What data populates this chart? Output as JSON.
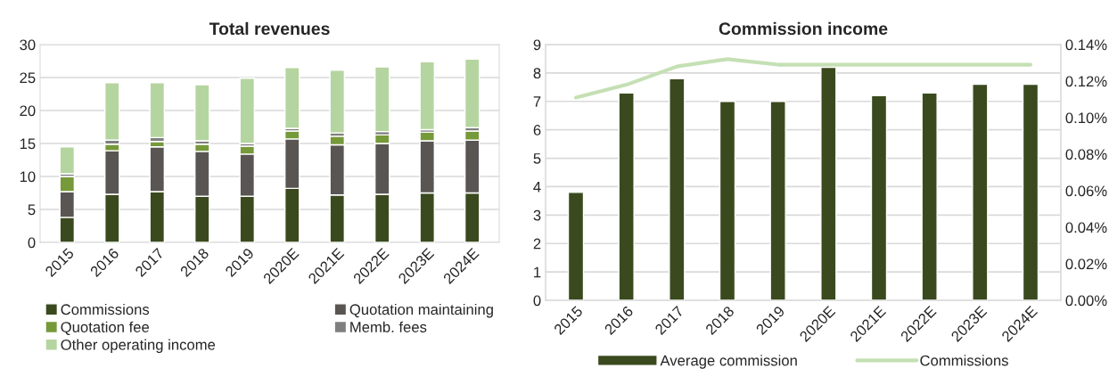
{
  "chart_data": [
    {
      "type": "bar",
      "title": "Total revenues",
      "stacked": true,
      "categories": [
        "2015",
        "2016",
        "2017",
        "2018",
        "2019",
        "2020E",
        "2021E",
        "2022E",
        "2023E",
        "2024E"
      ],
      "series": [
        {
          "name": "Commissions",
          "color": "#3a4a1e",
          "values": [
            3.8,
            7.3,
            7.7,
            7.0,
            7.0,
            8.2,
            7.2,
            7.3,
            7.5,
            7.5
          ]
        },
        {
          "name": "Quotation maintaining",
          "color": "#595553",
          "values": [
            3.9,
            6.6,
            6.8,
            6.8,
            6.4,
            7.5,
            7.6,
            7.7,
            7.9,
            8.0
          ]
        },
        {
          "name": "Quotation fee",
          "color": "#76993a",
          "values": [
            2.3,
            1.0,
            0.8,
            1.1,
            1.2,
            1.2,
            1.3,
            1.3,
            1.3,
            1.4
          ]
        },
        {
          "name": "Memb. fees",
          "color": "#7f7f7f",
          "values": [
            0.4,
            0.6,
            0.6,
            0.5,
            0.4,
            0.4,
            0.5,
            0.5,
            0.4,
            0.5
          ]
        },
        {
          "name": "Other operating income",
          "color": "#b5d5a0",
          "values": [
            4.1,
            8.7,
            8.3,
            8.5,
            9.9,
            9.2,
            9.5,
            9.8,
            10.3,
            10.4
          ]
        }
      ],
      "ylim": [
        0,
        30
      ],
      "yticks": [
        0,
        5,
        10,
        15,
        20,
        25,
        30
      ],
      "grid": "y",
      "legend": "bottom"
    },
    {
      "type": "bar",
      "title": "Commission income",
      "categories": [
        "2015",
        "2016",
        "2017",
        "2018",
        "2019",
        "2020E",
        "2021E",
        "2022E",
        "2023E",
        "2024E"
      ],
      "series": [
        {
          "name": "Average commission",
          "color": "#3a4a1e",
          "values": [
            3.8,
            7.3,
            7.8,
            7.0,
            7.0,
            8.2,
            7.2,
            7.3,
            7.6,
            7.6
          ]
        },
        {
          "name": "Commissions",
          "type": "line",
          "axis": "y2",
          "color": "#c5e0b4",
          "values": [
            0.111,
            0.118,
            0.128,
            0.132,
            0.129,
            0.129,
            0.129,
            0.129,
            0.129,
            0.129
          ]
        }
      ],
      "ylim": [
        0,
        9
      ],
      "yticks": [
        0,
        1,
        2,
        3,
        4,
        5,
        6,
        7,
        8,
        9
      ],
      "y2lim": [
        0,
        0.14
      ],
      "y2ticks": [
        {
          "value": 0,
          "label": "0.00%"
        },
        {
          "value": 0.02,
          "label": "0.02%"
        },
        {
          "value": 0.04,
          "label": "0.04%"
        },
        {
          "value": 0.06,
          "label": "0.06%"
        },
        {
          "value": 0.08,
          "label": "0.08%"
        },
        {
          "value": 0.1,
          "label": "0.10%"
        },
        {
          "value": 0.12,
          "label": "0.12%"
        },
        {
          "value": 0.14,
          "label": "0.14%"
        }
      ],
      "grid": "y",
      "legend": "bottom"
    }
  ]
}
